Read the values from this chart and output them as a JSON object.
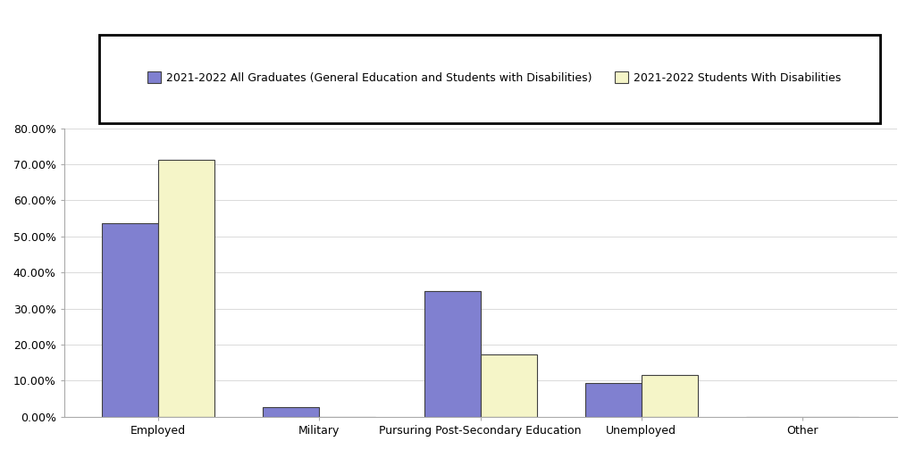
{
  "categories": [
    "Employed",
    "Military",
    "Pursuring Post-Secondary Education",
    "Unemployed",
    "Other"
  ],
  "series1_label": "2021-2022 All Graduates (General Education and Students with Disabilities)",
  "series2_label": "2021-2022 Students With Disabilities",
  "series1_values": [
    0.537,
    0.027,
    0.349,
    0.093,
    0.0
  ],
  "series2_values": [
    0.712,
    0.0,
    0.173,
    0.115,
    0.0
  ],
  "series1_color": "#8080d0",
  "series2_color": "#f5f5c8",
  "bar_edge_color": "#404040",
  "ylim": [
    0.0,
    0.8
  ],
  "yticks": [
    0.0,
    0.1,
    0.2,
    0.3,
    0.4,
    0.5,
    0.6,
    0.7,
    0.8
  ],
  "ytick_labels": [
    "0.00%",
    "10.00%",
    "20.00%",
    "30.00%",
    "40.00%",
    "50.00%",
    "60.00%",
    "70.00%",
    "80.00%"
  ],
  "bar_width": 0.35,
  "legend_fontsize": 9,
  "tick_fontsize": 9,
  "background_color": "#ffffff",
  "plot_bg_color": "#ffffff"
}
